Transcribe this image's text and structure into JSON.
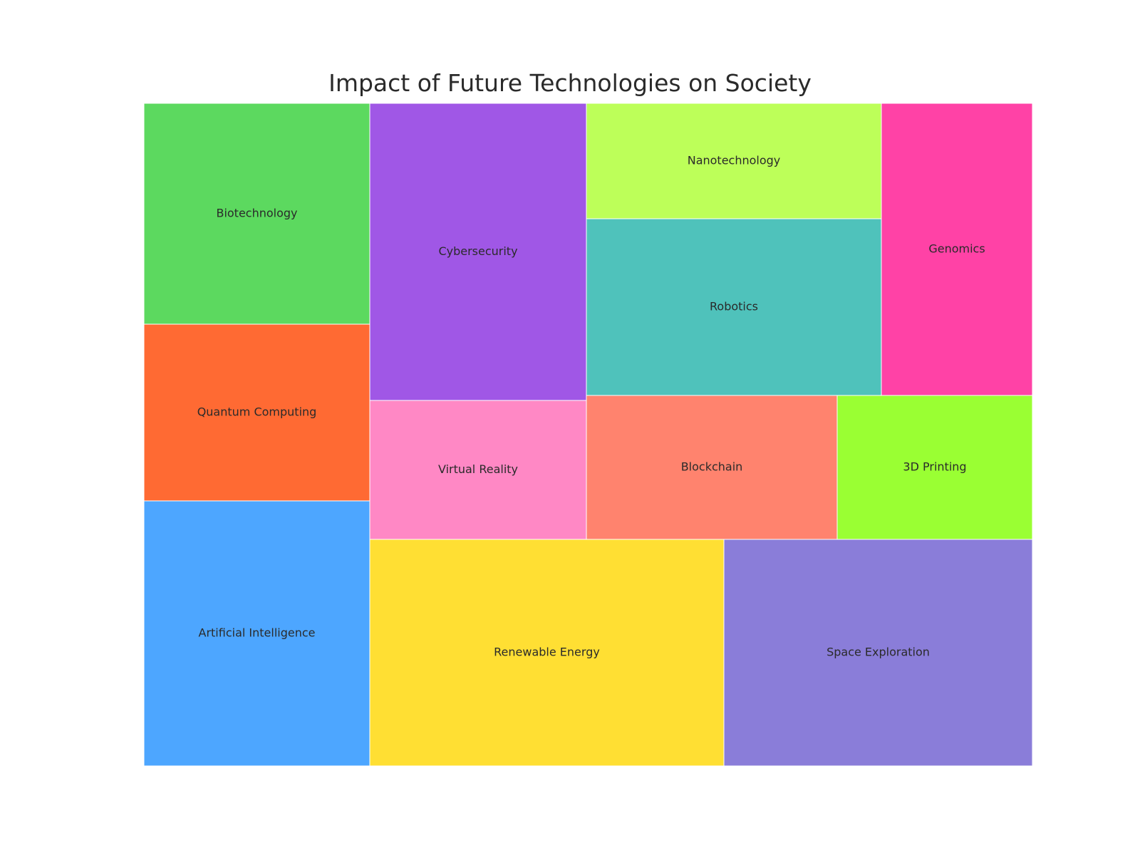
{
  "chart_data": {
    "type": "treemap",
    "title": "Impact of Future Technologies on Society",
    "items": [
      {
        "label": "Biotechnology",
        "color": "#5CD95F"
      },
      {
        "label": "Quantum Computing",
        "color": "#FF6A33"
      },
      {
        "label": "Artificial Intelligence",
        "color": "#4DA6FF"
      },
      {
        "label": "Cybersecurity",
        "color": "#A057E6"
      },
      {
        "label": "Virtual Reality",
        "color": "#FF88C5"
      },
      {
        "label": "Nanotechnology",
        "color": "#BDFF59"
      },
      {
        "label": "Robotics",
        "color": "#4FC2BB"
      },
      {
        "label": "Genomics",
        "color": "#FF42A6"
      },
      {
        "label": "Blockchain",
        "color": "#FF836E"
      },
      {
        "label": "3D Printing",
        "color": "#9AFF33"
      },
      {
        "label": "Renewable Energy",
        "color": "#FFDF33"
      },
      {
        "label": "Space Exploration",
        "color": "#8A7DD9"
      }
    ]
  }
}
